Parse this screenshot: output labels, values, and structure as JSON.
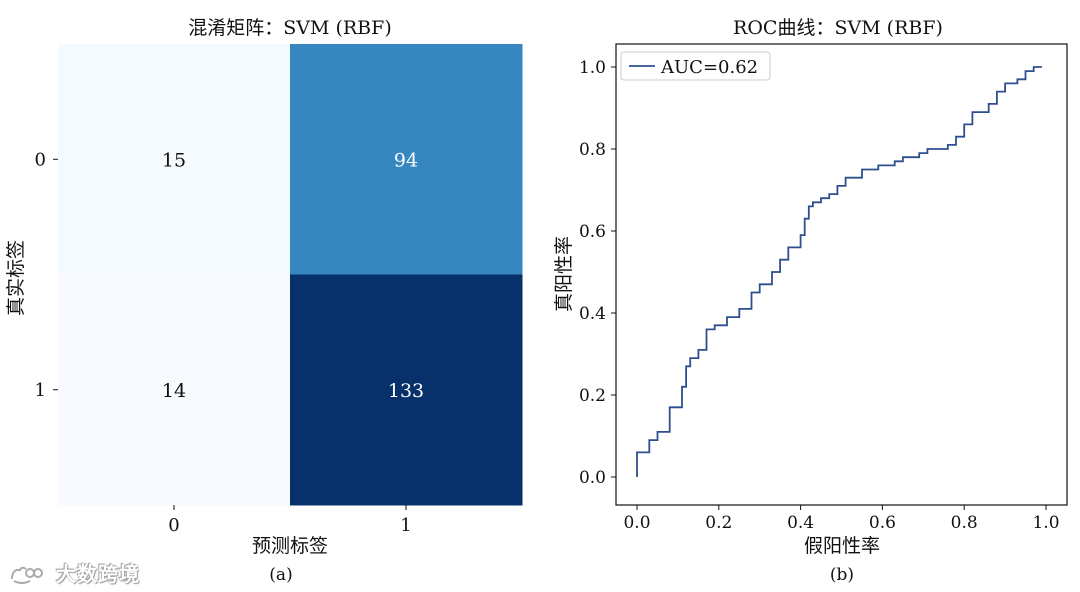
{
  "chart_data": [
    {
      "type": "heatmap",
      "title": "混淆矩阵：SVM (RBF)",
      "xlabel": "预测标签",
      "ylabel": "真实标签",
      "x_categories": [
        "0",
        "1"
      ],
      "y_categories": [
        "0",
        "1"
      ],
      "values": [
        [
          15,
          94
        ],
        [
          14,
          133
        ]
      ],
      "colormap": "Blues",
      "caption": "(a)"
    },
    {
      "type": "line",
      "title": "ROC曲线：SVM (RBF)",
      "xlabel": "假阳性率",
      "ylabel": "真阳性率",
      "xlim": [
        0.0,
        1.0
      ],
      "ylim": [
        0.0,
        1.0
      ],
      "x_ticks": [
        "0.0",
        "0.2",
        "0.4",
        "0.6",
        "0.8",
        "1.0"
      ],
      "y_ticks": [
        "0.0",
        "0.2",
        "0.4",
        "0.6",
        "0.8",
        "1.0"
      ],
      "legend_position": "upper-left",
      "grid": false,
      "caption": "(b)",
      "series": [
        {
          "name": "AUC=0.62",
          "color": "#2e4f8f",
          "points": [
            [
              0.0,
              0.0
            ],
            [
              0.0,
              0.06
            ],
            [
              0.03,
              0.06
            ],
            [
              0.03,
              0.09
            ],
            [
              0.05,
              0.09
            ],
            [
              0.05,
              0.11
            ],
            [
              0.08,
              0.11
            ],
            [
              0.08,
              0.17
            ],
            [
              0.11,
              0.17
            ],
            [
              0.11,
              0.22
            ],
            [
              0.12,
              0.22
            ],
            [
              0.12,
              0.27
            ],
            [
              0.13,
              0.27
            ],
            [
              0.13,
              0.29
            ],
            [
              0.15,
              0.29
            ],
            [
              0.15,
              0.31
            ],
            [
              0.17,
              0.31
            ],
            [
              0.17,
              0.36
            ],
            [
              0.19,
              0.36
            ],
            [
              0.19,
              0.37
            ],
            [
              0.22,
              0.37
            ],
            [
              0.22,
              0.39
            ],
            [
              0.25,
              0.39
            ],
            [
              0.25,
              0.41
            ],
            [
              0.28,
              0.41
            ],
            [
              0.28,
              0.45
            ],
            [
              0.3,
              0.45
            ],
            [
              0.3,
              0.47
            ],
            [
              0.33,
              0.47
            ],
            [
              0.33,
              0.5
            ],
            [
              0.35,
              0.5
            ],
            [
              0.35,
              0.53
            ],
            [
              0.37,
              0.53
            ],
            [
              0.37,
              0.56
            ],
            [
              0.4,
              0.56
            ],
            [
              0.4,
              0.59
            ],
            [
              0.41,
              0.59
            ],
            [
              0.41,
              0.63
            ],
            [
              0.42,
              0.63
            ],
            [
              0.42,
              0.66
            ],
            [
              0.43,
              0.66
            ],
            [
              0.43,
              0.67
            ],
            [
              0.45,
              0.67
            ],
            [
              0.45,
              0.68
            ],
            [
              0.47,
              0.68
            ],
            [
              0.47,
              0.69
            ],
            [
              0.49,
              0.69
            ],
            [
              0.49,
              0.71
            ],
            [
              0.51,
              0.71
            ],
            [
              0.51,
              0.73
            ],
            [
              0.55,
              0.73
            ],
            [
              0.55,
              0.75
            ],
            [
              0.59,
              0.75
            ],
            [
              0.59,
              0.76
            ],
            [
              0.63,
              0.76
            ],
            [
              0.63,
              0.77
            ],
            [
              0.65,
              0.77
            ],
            [
              0.65,
              0.78
            ],
            [
              0.69,
              0.78
            ],
            [
              0.69,
              0.79
            ],
            [
              0.71,
              0.79
            ],
            [
              0.71,
              0.8
            ],
            [
              0.76,
              0.8
            ],
            [
              0.76,
              0.81
            ],
            [
              0.78,
              0.81
            ],
            [
              0.78,
              0.83
            ],
            [
              0.8,
              0.83
            ],
            [
              0.8,
              0.86
            ],
            [
              0.82,
              0.86
            ],
            [
              0.82,
              0.89
            ],
            [
              0.86,
              0.89
            ],
            [
              0.86,
              0.91
            ],
            [
              0.88,
              0.91
            ],
            [
              0.88,
              0.94
            ],
            [
              0.9,
              0.94
            ],
            [
              0.9,
              0.96
            ],
            [
              0.93,
              0.96
            ],
            [
              0.93,
              0.97
            ],
            [
              0.95,
              0.97
            ],
            [
              0.95,
              0.99
            ],
            [
              0.97,
              0.99
            ],
            [
              0.97,
              1.0
            ],
            [
              0.99,
              1.0
            ]
          ]
        }
      ]
    }
  ],
  "watermark": {
    "text": "大数跨境"
  }
}
